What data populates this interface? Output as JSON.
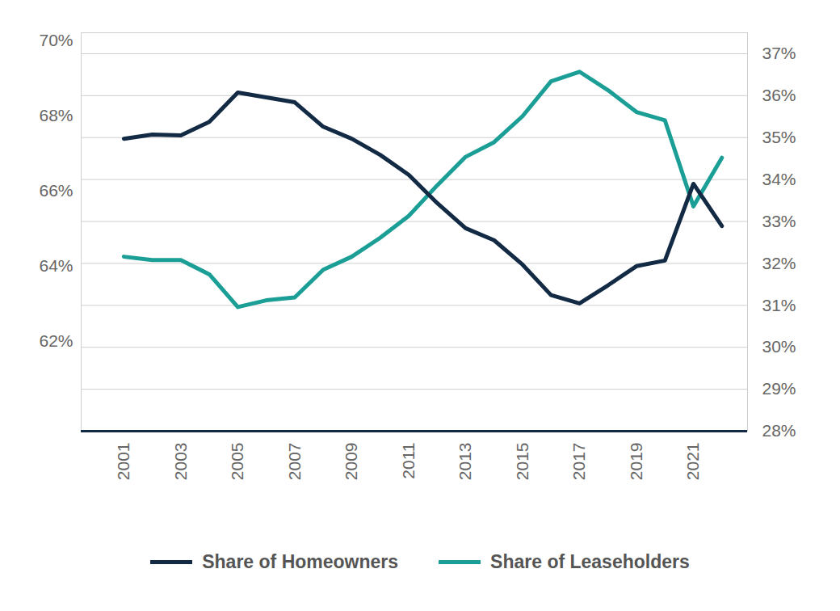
{
  "chart_data": {
    "type": "line",
    "x": [
      2001,
      2002,
      2003,
      2004,
      2005,
      2006,
      2007,
      2008,
      2009,
      2010,
      2011,
      2012,
      2013,
      2014,
      2015,
      2016,
      2017,
      2018,
      2019,
      2020,
      2021,
      2022
    ],
    "xlim": [
      1999.5,
      2022.9
    ],
    "xticks": [
      2001,
      2003,
      2005,
      2007,
      2009,
      2011,
      2013,
      2015,
      2017,
      2019,
      2021
    ],
    "ylim": [
      59.6,
      70.2
    ],
    "yticks": [
      {
        "value": 62,
        "label": "62%"
      },
      {
        "value": 64,
        "label": "64%"
      },
      {
        "value": 66,
        "label": "66%"
      },
      {
        "value": 68,
        "label": "68%"
      },
      {
        "value": 70,
        "label": "70%"
      }
    ],
    "y2lim": [
      28,
      37.5
    ],
    "y2ticks": [
      {
        "value": 28,
        "label": "28%"
      },
      {
        "value": 29,
        "label": "29%"
      },
      {
        "value": 30,
        "label": "30%"
      },
      {
        "value": 31,
        "label": "31%"
      },
      {
        "value": 32,
        "label": "32%"
      },
      {
        "value": 33,
        "label": "33%"
      },
      {
        "value": 34,
        "label": "34%"
      },
      {
        "value": 35,
        "label": "35%"
      },
      {
        "value": 36,
        "label": "36%"
      },
      {
        "value": 37,
        "label": "37%"
      }
    ],
    "grid": true,
    "legend": "bottom",
    "series": [
      {
        "name": "Share of Homeowners",
        "color": "#132a45",
        "values": [
          67.38,
          67.49,
          67.47,
          67.83,
          68.61,
          68.48,
          68.35,
          67.7,
          67.38,
          66.95,
          66.42,
          65.67,
          65.0,
          64.68,
          64.03,
          63.22,
          63.0,
          63.48,
          63.99,
          64.14,
          66.18,
          65.06
        ]
      },
      {
        "name": "Share of Leaseholders",
        "color": "#1a9e96",
        "axis": "y2",
        "values": [
          32.16,
          32.08,
          32.08,
          31.74,
          30.96,
          31.12,
          31.19,
          31.85,
          32.16,
          32.61,
          33.13,
          33.86,
          34.54,
          34.89,
          35.51,
          36.34,
          36.57,
          36.13,
          35.61,
          35.41,
          33.36,
          34.52
        ]
      }
    ]
  }
}
